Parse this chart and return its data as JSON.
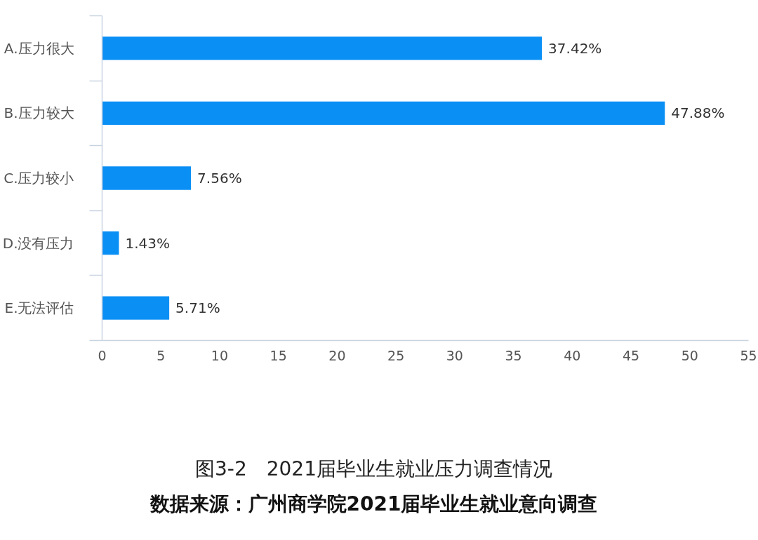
{
  "chart_data": {
    "type": "bar",
    "orientation": "horizontal",
    "title": "图3-2　2021届毕业生就业压力调查情况",
    "categories": [
      "A.压力很大",
      "B.压力较大",
      "C.压力较小",
      "D.没有压力",
      "E.无法评估"
    ],
    "values": [
      37.42,
      47.88,
      7.56,
      1.43,
      5.71
    ],
    "color": "#0a8ff5",
    "value_labels": [
      "37.42%",
      "47.88%",
      "7.56%",
      "1.43%",
      "5.71%"
    ],
    "xlim": [
      0,
      55
    ],
    "xticks": [
      0,
      5,
      10,
      15,
      20,
      25,
      30,
      35,
      40,
      45,
      50,
      55
    ],
    "grid": false,
    "annotations": [
      "数据来源：广州商学院2021届毕业生就业意向调查"
    ]
  }
}
